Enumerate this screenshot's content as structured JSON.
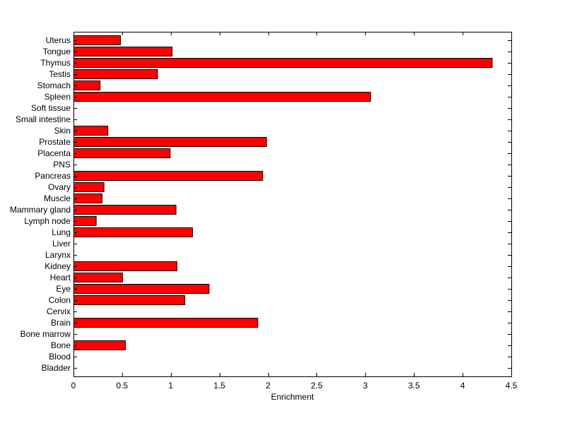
{
  "chart_data": {
    "type": "bar",
    "orientation": "horizontal",
    "xlabel": "Enrichment",
    "xlim": [
      0,
      4.5
    ],
    "xticks": [
      0,
      0.5,
      1,
      1.5,
      2,
      2.5,
      3,
      3.5,
      4,
      4.5
    ],
    "xtick_labels": [
      "0",
      "0.5",
      "1",
      "1.5",
      "2",
      "2.5",
      "3",
      "3.5",
      "4",
      "4.5"
    ],
    "grid": false,
    "categories": [
      "Uterus",
      "Tongue",
      "Thymus",
      "Testis",
      "Stomach",
      "Spleen",
      "Soft tissue",
      "Small intestine",
      "Skin",
      "Prostate",
      "Placenta",
      "PNS",
      "Pancreas",
      "Ovary",
      "Muscle",
      "Mammary gland",
      "Lymph node",
      "Lung",
      "Liver",
      "Larynx",
      "Kidney",
      "Heart",
      "Eye",
      "Colon",
      "Cervix",
      "Brain",
      "Bone marrow",
      "Bone",
      "Blood",
      "Bladder"
    ],
    "values": [
      0.48,
      1.01,
      4.3,
      0.86,
      0.27,
      3.05,
      0,
      0,
      0.35,
      1.98,
      0.99,
      0,
      1.94,
      0.31,
      0.29,
      1.05,
      0.23,
      1.22,
      0,
      0,
      1.06,
      0.5,
      1.39,
      1.14,
      0,
      1.89,
      0,
      0.53,
      0,
      0
    ],
    "colors": {
      "bar_fill": "#ff0000",
      "bar_edge": "#000000",
      "axes": "#000000",
      "background": "#ffffff"
    }
  }
}
